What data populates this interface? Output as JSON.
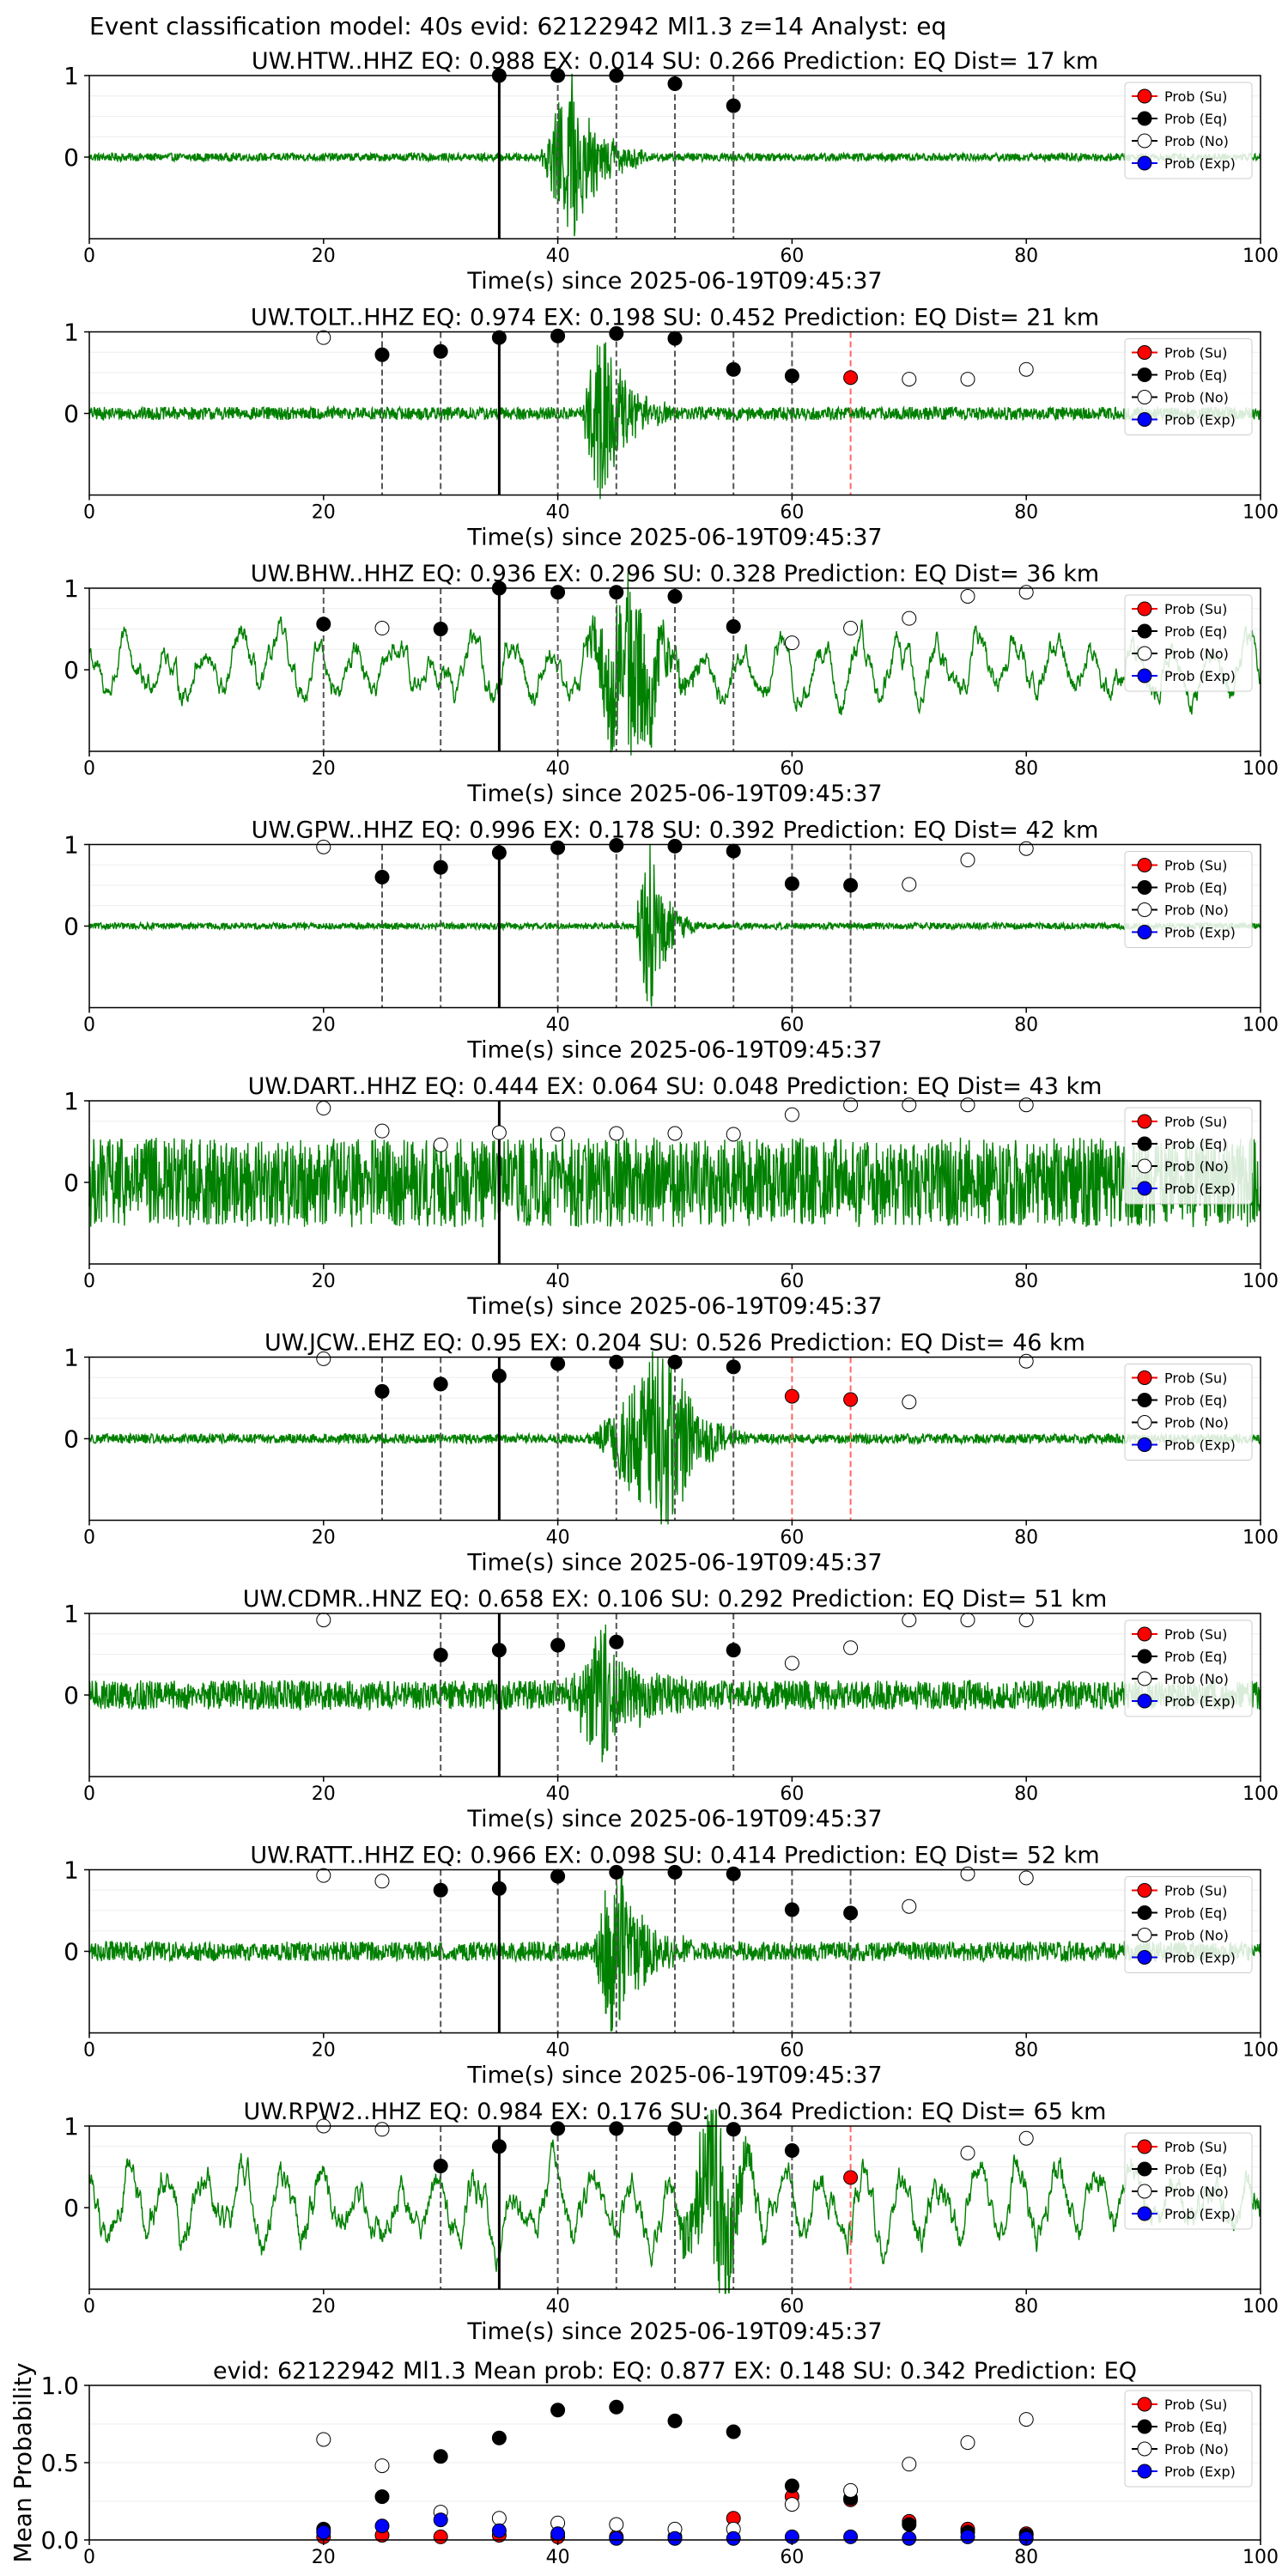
{
  "suptitle": "Event classification model: 40s evid: 62122942 Ml1.3 z=14 Analyst: eq",
  "colors": {
    "wave": "#008000",
    "su": "#ff0000",
    "eq": "#000000",
    "no": "#ffffff",
    "exp": "#0000ff",
    "red_vline": "#ff6666",
    "dash_vline": "#555555"
  },
  "chart_data": [
    {
      "type": "line",
      "title": "UW.HTW..HHZ   EQ: 0.988  EX: 0.014  SU: 0.266   Prediction: EQ    Dist= 17 km",
      "xlabel": "Time(s) since 2025-06-19T09:45:37",
      "ylabel": "",
      "xlim": [
        0,
        100
      ],
      "ylim": [
        -1,
        1
      ],
      "xticks": [
        "0",
        "20",
        "40",
        "60",
        "80",
        "100"
      ],
      "yticks": [
        "0",
        "1"
      ],
      "legend_position": "upper right",
      "legend": [
        "Prob (Su)",
        "Prob (Eq)",
        "Prob (No)",
        "Prob (Exp)"
      ],
      "pick_time": 35,
      "amp": 0.05,
      "event": {
        "start": 38.5,
        "end": 48,
        "peak": 41.2,
        "amp": 0.8
      },
      "dashed_lines": [
        40,
        45,
        50,
        55
      ],
      "red_lines": [],
      "probs": [
        {
          "t": 35,
          "v": 1.0,
          "c": "eq"
        },
        {
          "t": 40,
          "v": 1.0,
          "c": "eq"
        },
        {
          "t": 45,
          "v": 1.0,
          "c": "eq"
        },
        {
          "t": 50,
          "v": 0.9,
          "c": "eq"
        },
        {
          "t": 55,
          "v": 0.63,
          "c": "eq"
        }
      ]
    },
    {
      "type": "line",
      "title": "UW.TOLT..HHZ   EQ: 0.974  EX: 0.198  SU: 0.452   Prediction: EQ    Dist= 21 km",
      "xlabel": "Time(s) since 2025-06-19T09:45:37",
      "ylabel": "",
      "xlim": [
        0,
        100
      ],
      "ylim": [
        -1,
        1
      ],
      "xticks": [
        "0",
        "20",
        "40",
        "60",
        "80",
        "100"
      ],
      "yticks": [
        "0",
        "1"
      ],
      "legend_position": "upper right",
      "legend": [
        "Prob (Su)",
        "Prob (Eq)",
        "Prob (No)",
        "Prob (Exp)"
      ],
      "pick_time": 35,
      "amp": 0.08,
      "event": {
        "start": 42,
        "end": 50,
        "peak": 43.5,
        "amp": 0.85
      },
      "dashed_lines": [
        25,
        30,
        40,
        45,
        50,
        55,
        60
      ],
      "red_lines": [
        65
      ],
      "probs": [
        {
          "t": 20,
          "v": 0.93,
          "c": "no"
        },
        {
          "t": 25,
          "v": 0.72,
          "c": "eq"
        },
        {
          "t": 30,
          "v": 0.76,
          "c": "eq"
        },
        {
          "t": 35,
          "v": 0.93,
          "c": "eq"
        },
        {
          "t": 40,
          "v": 0.95,
          "c": "eq"
        },
        {
          "t": 45,
          "v": 0.98,
          "c": "eq"
        },
        {
          "t": 50,
          "v": 0.92,
          "c": "eq"
        },
        {
          "t": 55,
          "v": 0.54,
          "c": "eq"
        },
        {
          "t": 60,
          "v": 0.46,
          "c": "eq"
        },
        {
          "t": 65,
          "v": 0.44,
          "c": "su"
        },
        {
          "t": 70,
          "v": 0.42,
          "c": "no"
        },
        {
          "t": 75,
          "v": 0.42,
          "c": "no"
        },
        {
          "t": 80,
          "v": 0.54,
          "c": "no"
        }
      ]
    },
    {
      "type": "line",
      "title": "UW.BHW..HHZ   EQ: 0.936  EX: 0.296  SU: 0.328   Prediction: EQ    Dist= 36 km",
      "xlabel": "Time(s) since 2025-06-19T09:45:37",
      "ylabel": "",
      "xlim": [
        0,
        100
      ],
      "ylim": [
        -1,
        1
      ],
      "xticks": [
        "0",
        "20",
        "40",
        "60",
        "80",
        "100"
      ],
      "yticks": [
        "0",
        "1"
      ],
      "legend_position": "upper right",
      "legend": [
        "Prob (Su)",
        "Prob (Eq)",
        "Prob (No)",
        "Prob (Exp)"
      ],
      "pick_time": 35,
      "amp": 0.35,
      "event": {
        "start": 42,
        "end": 52,
        "peak": 46.5,
        "amp": 0.9
      },
      "dashed_lines": [
        20,
        30,
        40,
        45,
        50,
        55
      ],
      "red_lines": [],
      "probs": [
        {
          "t": 20,
          "v": 0.56,
          "c": "eq"
        },
        {
          "t": 25,
          "v": 0.51,
          "c": "no"
        },
        {
          "t": 30,
          "v": 0.5,
          "c": "eq"
        },
        {
          "t": 35,
          "v": 1.0,
          "c": "eq"
        },
        {
          "t": 40,
          "v": 0.95,
          "c": "eq"
        },
        {
          "t": 45,
          "v": 0.95,
          "c": "eq"
        },
        {
          "t": 50,
          "v": 0.9,
          "c": "eq"
        },
        {
          "t": 55,
          "v": 0.53,
          "c": "eq"
        },
        {
          "t": 60,
          "v": 0.33,
          "c": "no"
        },
        {
          "t": 65,
          "v": 0.51,
          "c": "no"
        },
        {
          "t": 70,
          "v": 0.63,
          "c": "no"
        },
        {
          "t": 75,
          "v": 0.9,
          "c": "no"
        },
        {
          "t": 80,
          "v": 0.95,
          "c": "no"
        }
      ]
    },
    {
      "type": "line",
      "title": "UW.GPW..HHZ   EQ: 0.996  EX: 0.178  SU: 0.392   Prediction: EQ    Dist= 42 km",
      "xlabel": "Time(s) since 2025-06-19T09:45:37",
      "ylabel": "",
      "xlim": [
        0,
        100
      ],
      "ylim": [
        -1,
        1
      ],
      "xticks": [
        "0",
        "20",
        "40",
        "60",
        "80",
        "100"
      ],
      "yticks": [
        "0",
        "1"
      ],
      "legend_position": "upper right",
      "legend": [
        "Prob (Su)",
        "Prob (Eq)",
        "Prob (No)",
        "Prob (Exp)"
      ],
      "pick_time": 35,
      "amp": 0.04,
      "event": {
        "start": 46.5,
        "end": 52,
        "peak": 47.8,
        "amp": 0.8
      },
      "dashed_lines": [
        25,
        30,
        40,
        45,
        50,
        55,
        60,
        65
      ],
      "red_lines": [],
      "probs": [
        {
          "t": 20,
          "v": 0.97,
          "c": "no"
        },
        {
          "t": 25,
          "v": 0.6,
          "c": "eq"
        },
        {
          "t": 30,
          "v": 0.72,
          "c": "eq"
        },
        {
          "t": 35,
          "v": 0.9,
          "c": "eq"
        },
        {
          "t": 40,
          "v": 0.96,
          "c": "eq"
        },
        {
          "t": 45,
          "v": 0.99,
          "c": "eq"
        },
        {
          "t": 50,
          "v": 0.98,
          "c": "eq"
        },
        {
          "t": 55,
          "v": 0.92,
          "c": "eq"
        },
        {
          "t": 60,
          "v": 0.52,
          "c": "eq"
        },
        {
          "t": 65,
          "v": 0.5,
          "c": "eq"
        },
        {
          "t": 70,
          "v": 0.51,
          "c": "no"
        },
        {
          "t": 75,
          "v": 0.81,
          "c": "no"
        },
        {
          "t": 80,
          "v": 0.95,
          "c": "no"
        }
      ]
    },
    {
      "type": "line",
      "title": "UW.DART..HHZ   EQ: 0.444  EX: 0.064  SU: 0.048   Prediction: EQ    Dist= 43 km",
      "xlabel": "Time(s) since 2025-06-19T09:45:37",
      "ylabel": "",
      "xlim": [
        0,
        100
      ],
      "ylim": [
        -1,
        1
      ],
      "xticks": [
        "0",
        "20",
        "40",
        "60",
        "80",
        "100"
      ],
      "yticks": [
        "0",
        "1"
      ],
      "legend_position": "upper right",
      "legend": [
        "Prob (Su)",
        "Prob (Eq)",
        "Prob (No)",
        "Prob (Exp)"
      ],
      "pick_time": 35,
      "amp": 0.55,
      "event": {
        "start": 0,
        "end": 0,
        "peak": 0,
        "amp": 0
      },
      "dashed_lines": [],
      "red_lines": [],
      "probs": [
        {
          "t": 20,
          "v": 0.91,
          "c": "no"
        },
        {
          "t": 25,
          "v": 0.63,
          "c": "no"
        },
        {
          "t": 30,
          "v": 0.46,
          "c": "no"
        },
        {
          "t": 35,
          "v": 0.61,
          "c": "no"
        },
        {
          "t": 40,
          "v": 0.59,
          "c": "no"
        },
        {
          "t": 45,
          "v": 0.6,
          "c": "no"
        },
        {
          "t": 50,
          "v": 0.6,
          "c": "no"
        },
        {
          "t": 55,
          "v": 0.59,
          "c": "no"
        },
        {
          "t": 60,
          "v": 0.83,
          "c": "no"
        },
        {
          "t": 65,
          "v": 0.95,
          "c": "no"
        },
        {
          "t": 70,
          "v": 0.95,
          "c": "no"
        },
        {
          "t": 75,
          "v": 0.95,
          "c": "no"
        },
        {
          "t": 80,
          "v": 0.95,
          "c": "no"
        }
      ]
    },
    {
      "type": "line",
      "title": "UW.JCW..EHZ   EQ: 0.95  EX: 0.204  SU: 0.526   Prediction: EQ    Dist= 46 km",
      "xlabel": "Time(s) since 2025-06-19T09:45:37",
      "ylabel": "",
      "xlim": [
        0,
        100
      ],
      "ylim": [
        -1,
        1
      ],
      "xticks": [
        "0",
        "20",
        "40",
        "60",
        "80",
        "100"
      ],
      "yticks": [
        "0",
        "1"
      ],
      "legend_position": "upper right",
      "legend": [
        "Prob (Su)",
        "Prob (Eq)",
        "Prob (No)",
        "Prob (Exp)"
      ],
      "pick_time": 35,
      "amp": 0.06,
      "event": {
        "start": 43,
        "end": 56,
        "peak": 49.5,
        "amp": 0.95
      },
      "dashed_lines": [
        25,
        30,
        40,
        45,
        50,
        55
      ],
      "red_lines": [
        60,
        65
      ],
      "probs": [
        {
          "t": 20,
          "v": 0.98,
          "c": "no"
        },
        {
          "t": 25,
          "v": 0.58,
          "c": "eq"
        },
        {
          "t": 30,
          "v": 0.67,
          "c": "eq"
        },
        {
          "t": 35,
          "v": 0.77,
          "c": "eq"
        },
        {
          "t": 40,
          "v": 0.92,
          "c": "eq"
        },
        {
          "t": 45,
          "v": 0.94,
          "c": "eq"
        },
        {
          "t": 50,
          "v": 0.94,
          "c": "eq"
        },
        {
          "t": 55,
          "v": 0.88,
          "c": "eq"
        },
        {
          "t": 60,
          "v": 0.52,
          "c": "su"
        },
        {
          "t": 65,
          "v": 0.48,
          "c": "su"
        },
        {
          "t": 70,
          "v": 0.45,
          "c": "no"
        },
        {
          "t": 80,
          "v": 0.95,
          "c": "no"
        }
      ]
    },
    {
      "type": "line",
      "title": "UW.CDMR..HNZ   EQ: 0.658  EX: 0.106  SU: 0.292   Prediction: EQ    Dist= 51 km",
      "xlabel": "Time(s) since 2025-06-19T09:45:37",
      "ylabel": "",
      "xlim": [
        0,
        100
      ],
      "ylim": [
        -1,
        1
      ],
      "xticks": [
        "0",
        "20",
        "40",
        "60",
        "80",
        "100"
      ],
      "yticks": [
        "0",
        "1"
      ],
      "legend_position": "upper right",
      "legend": [
        "Prob (Su)",
        "Prob (Eq)",
        "Prob (No)",
        "Prob (Exp)"
      ],
      "pick_time": 35,
      "amp": 0.18,
      "event": {
        "start": 40,
        "end": 52,
        "peak": 44,
        "amp": 0.6
      },
      "dashed_lines": [
        30,
        40,
        45,
        55
      ],
      "red_lines": [],
      "probs": [
        {
          "t": 20,
          "v": 0.92,
          "c": "no"
        },
        {
          "t": 30,
          "v": 0.49,
          "c": "eq"
        },
        {
          "t": 35,
          "v": 0.55,
          "c": "eq"
        },
        {
          "t": 40,
          "v": 0.61,
          "c": "eq"
        },
        {
          "t": 45,
          "v": 0.65,
          "c": "eq"
        },
        {
          "t": 55,
          "v": 0.55,
          "c": "eq"
        },
        {
          "t": 60,
          "v": 0.39,
          "c": "no"
        },
        {
          "t": 65,
          "v": 0.58,
          "c": "no"
        },
        {
          "t": 70,
          "v": 0.92,
          "c": "no"
        },
        {
          "t": 75,
          "v": 0.92,
          "c": "no"
        },
        {
          "t": 80,
          "v": 0.92,
          "c": "no"
        }
      ]
    },
    {
      "type": "line",
      "title": "UW.RATT..HHZ   EQ: 0.966  EX: 0.098  SU: 0.414   Prediction: EQ    Dist= 52 km",
      "xlabel": "Time(s) since 2025-06-19T09:45:37",
      "ylabel": "",
      "xlim": [
        0,
        100
      ],
      "ylim": [
        -1,
        1
      ],
      "xticks": [
        "0",
        "20",
        "40",
        "60",
        "80",
        "100"
      ],
      "yticks": [
        "0",
        "1"
      ],
      "legend_position": "upper right",
      "legend": [
        "Prob (Su)",
        "Prob (Eq)",
        "Prob (No)",
        "Prob (Exp)"
      ],
      "pick_time": 35,
      "amp": 0.12,
      "event": {
        "start": 43,
        "end": 52,
        "peak": 44.5,
        "amp": 0.85
      },
      "dashed_lines": [
        30,
        40,
        45,
        50,
        55,
        60,
        65
      ],
      "red_lines": [],
      "probs": [
        {
          "t": 20,
          "v": 0.93,
          "c": "no"
        },
        {
          "t": 25,
          "v": 0.86,
          "c": "no"
        },
        {
          "t": 30,
          "v": 0.75,
          "c": "eq"
        },
        {
          "t": 35,
          "v": 0.77,
          "c": "eq"
        },
        {
          "t": 40,
          "v": 0.92,
          "c": "eq"
        },
        {
          "t": 45,
          "v": 0.97,
          "c": "eq"
        },
        {
          "t": 50,
          "v": 0.97,
          "c": "eq"
        },
        {
          "t": 55,
          "v": 0.95,
          "c": "eq"
        },
        {
          "t": 60,
          "v": 0.51,
          "c": "eq"
        },
        {
          "t": 65,
          "v": 0.47,
          "c": "eq"
        },
        {
          "t": 70,
          "v": 0.55,
          "c": "no"
        },
        {
          "t": 75,
          "v": 0.95,
          "c": "no"
        },
        {
          "t": 80,
          "v": 0.9,
          "c": "no"
        }
      ]
    },
    {
      "type": "line",
      "title": "UW.RPW2..HHZ   EQ: 0.984  EX: 0.176  SU: 0.364   Prediction: EQ    Dist= 65 km",
      "xlabel": "Time(s) since 2025-06-19T09:45:37",
      "ylabel": "",
      "xlim": [
        0,
        100
      ],
      "ylim": [
        -1,
        1
      ],
      "xticks": [
        "0",
        "20",
        "40",
        "60",
        "80",
        "100"
      ],
      "yticks": [
        "0",
        "1"
      ],
      "legend_position": "upper right",
      "legend": [
        "Prob (Su)",
        "Prob (Eq)",
        "Prob (No)",
        "Prob (Exp)"
      ],
      "pick_time": 35,
      "amp": 0.45,
      "event": {
        "start": 50,
        "end": 58,
        "peak": 54,
        "amp": 0.9
      },
      "dashed_lines": [
        30,
        40,
        45,
        50,
        55,
        60
      ],
      "red_lines": [
        65
      ],
      "probs": [
        {
          "t": 20,
          "v": 1.0,
          "c": "no"
        },
        {
          "t": 25,
          "v": 0.96,
          "c": "no"
        },
        {
          "t": 30,
          "v": 0.51,
          "c": "eq"
        },
        {
          "t": 35,
          "v": 0.75,
          "c": "eq"
        },
        {
          "t": 40,
          "v": 0.97,
          "c": "eq"
        },
        {
          "t": 45,
          "v": 0.97,
          "c": "eq"
        },
        {
          "t": 50,
          "v": 0.97,
          "c": "eq"
        },
        {
          "t": 55,
          "v": 0.96,
          "c": "eq"
        },
        {
          "t": 60,
          "v": 0.7,
          "c": "eq"
        },
        {
          "t": 65,
          "v": 0.37,
          "c": "su"
        },
        {
          "t": 75,
          "v": 0.67,
          "c": "no"
        },
        {
          "t": 80,
          "v": 0.85,
          "c": "no"
        }
      ]
    },
    {
      "type": "scatter",
      "title": "evid: 62122942  Ml1.3   Mean prob:    EQ: 0.877  EX: 0.148  SU: 0.342   Prediction: EQ",
      "xlabel": "",
      "ylabel": "Mean Probability",
      "xlim": [
        0,
        100
      ],
      "ylim": [
        0,
        1
      ],
      "xticks": [
        "0",
        "20",
        "40",
        "60",
        "80",
        "100"
      ],
      "yticks": [
        "0.0",
        "0.5",
        "1.0"
      ],
      "legend_position": "upper right",
      "legend": [
        "Prob (Su)",
        "Prob (Eq)",
        "Prob (No)",
        "Prob (Exp)"
      ],
      "series": [
        {
          "name": "Prob (Su)",
          "x": [
            20,
            25,
            30,
            35,
            40,
            45,
            50,
            55,
            60,
            65,
            70,
            75,
            80
          ],
          "values": [
            0.02,
            0.03,
            0.02,
            0.03,
            0.02,
            0.02,
            0.02,
            0.14,
            0.28,
            0.26,
            0.12,
            0.07,
            0.04
          ]
        },
        {
          "name": "Prob (Eq)",
          "x": [
            20,
            25,
            30,
            35,
            40,
            45,
            50,
            55,
            60,
            65,
            70,
            75,
            80
          ],
          "values": [
            0.07,
            0.28,
            0.54,
            0.66,
            0.84,
            0.86,
            0.77,
            0.7,
            0.35,
            0.27,
            0.1,
            0.05,
            0.03
          ]
        },
        {
          "name": "Prob (No)",
          "x": [
            20,
            25,
            30,
            35,
            40,
            45,
            50,
            55,
            60,
            65,
            70,
            75,
            80
          ],
          "values": [
            0.65,
            0.48,
            0.18,
            0.14,
            0.11,
            0.1,
            0.07,
            0.07,
            0.23,
            0.32,
            0.49,
            0.63,
            0.78
          ]
        },
        {
          "name": "Prob (Exp)",
          "x": [
            20,
            25,
            30,
            35,
            40,
            45,
            50,
            55,
            60,
            65,
            70,
            75,
            80
          ],
          "values": [
            0.05,
            0.09,
            0.13,
            0.06,
            0.04,
            0.01,
            0.01,
            0.01,
            0.02,
            0.02,
            0.01,
            0.02,
            0.01
          ]
        }
      ]
    }
  ]
}
